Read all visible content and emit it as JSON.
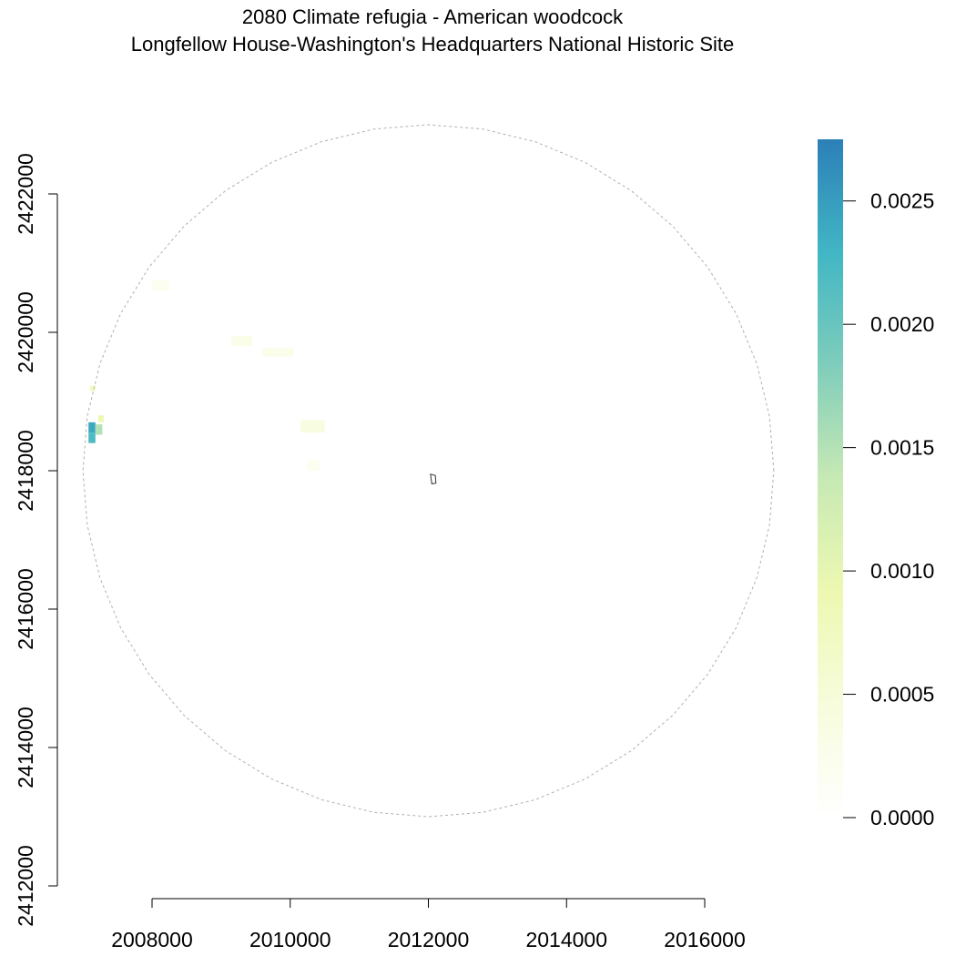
{
  "title": {
    "line1": "2080 Climate refugia - American woodcock",
    "line2": "Longfellow House-Washington's Headquarters National Historic Site"
  },
  "axes": {
    "x_ticks": [
      "2008000",
      "2010000",
      "2012000",
      "2014000",
      "2016000"
    ],
    "y_ticks": [
      "2412000",
      "2414000",
      "2416000",
      "2418000",
      "2420000",
      "2422000"
    ]
  },
  "legend": {
    "ticks": [
      "0.0000",
      "0.0005",
      "0.0010",
      "0.0015",
      "0.0020",
      "0.0025"
    ],
    "colors": [
      "#ffffff",
      "#f7fcdc",
      "#edf8b1",
      "#c7e9b4",
      "#7fcdbb",
      "#41b6c4",
      "#2c7fb8"
    ]
  },
  "chart_data": {
    "type": "heatmap",
    "title": "2080 Climate refugia - American woodcock\nLongfellow House-Washington's Headquarters National Historic Site",
    "xlabel": "",
    "ylabel": "",
    "xlim": [
      2006700,
      2017400
    ],
    "ylim": [
      2412000,
      2422700
    ],
    "x_ticks": [
      2008000,
      2010000,
      2012000,
      2014000,
      2016000
    ],
    "y_ticks": [
      2412000,
      2414000,
      2416000,
      2418000,
      2420000,
      2422000
    ],
    "color_scale": {
      "min": 0.0,
      "max": 0.00275,
      "ticks": [
        0.0,
        0.0005,
        0.001,
        0.0015,
        0.002,
        0.0025
      ],
      "colors": [
        "#ffffff",
        "#f7fcdc",
        "#edf8b1",
        "#c7e9b4",
        "#7fcdbb",
        "#41b6c4",
        "#2c7fb8"
      ]
    },
    "boundary_circle": {
      "center": [
        2012000,
        2418000
      ],
      "radius": 5000,
      "style": "dashed grey"
    },
    "park_polygon": [
      [
        2012030,
        2417950
      ],
      [
        2012100,
        2417930
      ],
      [
        2012110,
        2417820
      ],
      [
        2012050,
        2417810
      ],
      [
        2012030,
        2417950
      ]
    ],
    "cells": [
      {
        "x": 2007080,
        "y": 2418550,
        "w": 100,
        "h": 150,
        "value": 0.0024
      },
      {
        "x": 2007080,
        "y": 2418400,
        "w": 100,
        "h": 150,
        "value": 0.0022
      },
      {
        "x": 2007180,
        "y": 2418520,
        "w": 100,
        "h": 150,
        "value": 0.0015
      },
      {
        "x": 2007220,
        "y": 2418700,
        "w": 80,
        "h": 100,
        "value": 0.0009
      },
      {
        "x": 2007100,
        "y": 2419150,
        "w": 80,
        "h": 80,
        "value": 0.0007
      },
      {
        "x": 2009150,
        "y": 2419800,
        "w": 300,
        "h": 150,
        "value": 0.0003
      },
      {
        "x": 2009600,
        "y": 2419650,
        "w": 450,
        "h": 120,
        "value": 0.0003
      },
      {
        "x": 2010150,
        "y": 2418550,
        "w": 350,
        "h": 180,
        "value": 0.0004
      },
      {
        "x": 2010250,
        "y": 2418000,
        "w": 180,
        "h": 150,
        "value": 0.0002
      },
      {
        "x": 2008000,
        "y": 2420600,
        "w": 250,
        "h": 150,
        "value": 0.0002
      }
    ]
  }
}
